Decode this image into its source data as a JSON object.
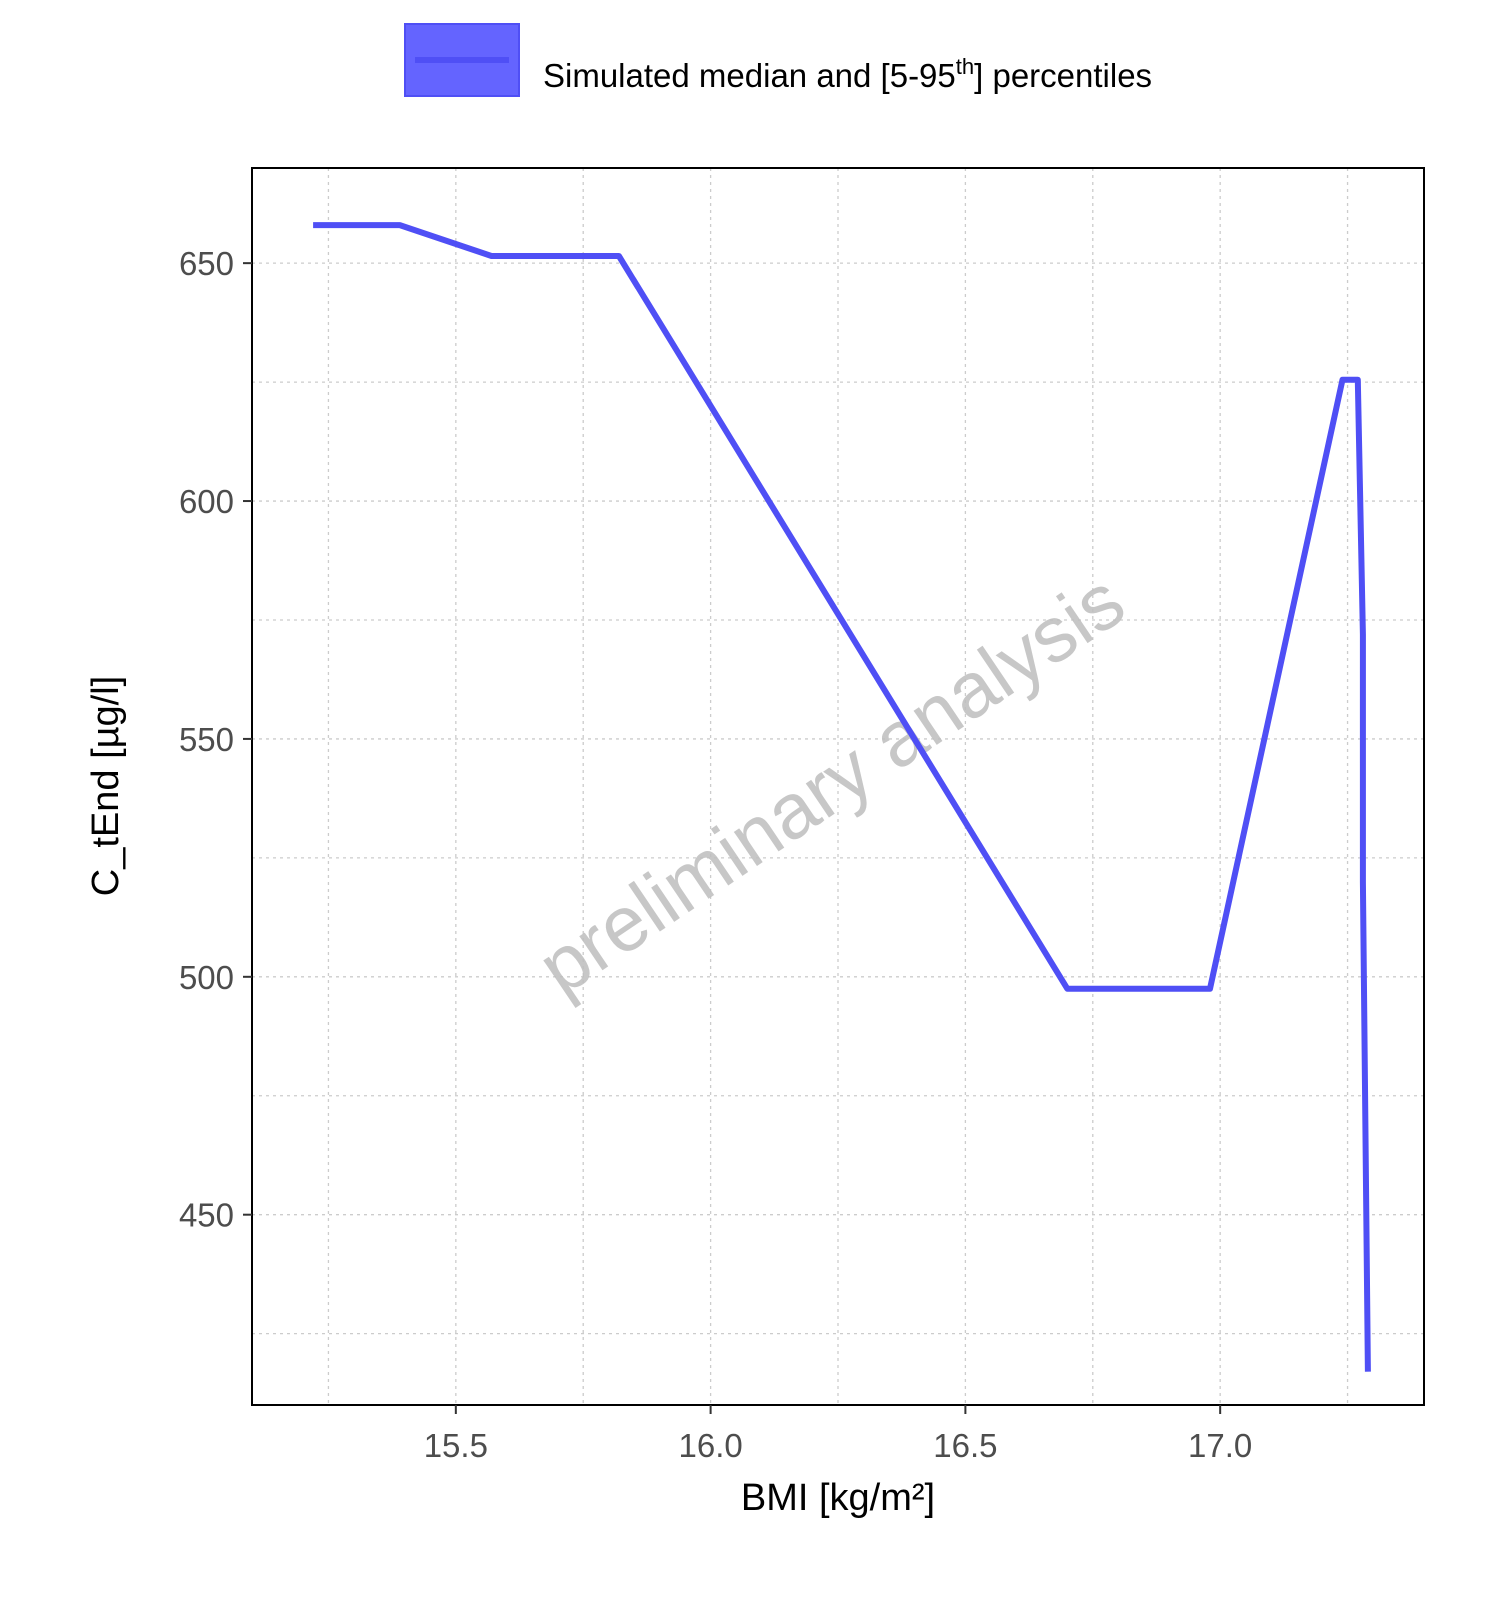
{
  "chart_data": {
    "type": "line",
    "title": "",
    "xlabel": "BMI [kg/m²]",
    "ylabel": "C_tEnd [µg/l]",
    "xlim": [
      15.1,
      17.4
    ],
    "ylim": [
      410,
      670
    ],
    "x_ticks": [
      15.5,
      16.0,
      16.5,
      17.0
    ],
    "x_tick_labels": [
      "15.5",
      "16.0",
      "16.5",
      "17.0"
    ],
    "y_ticks": [
      450,
      500,
      550,
      600,
      650
    ],
    "y_tick_labels": [
      "450",
      "500",
      "550",
      "600",
      "650"
    ],
    "x_minor_ticks": [
      15.25,
      15.75,
      16.25,
      16.75,
      17.25
    ],
    "y_minor_ticks": [
      425,
      475,
      525,
      575,
      625
    ],
    "grid": true,
    "legend": {
      "position": "top",
      "label_main": "Simulated median and [5-95",
      "label_sup": "th",
      "label_end": "] percentiles"
    },
    "watermark": "preliminary analysis",
    "series": [
      {
        "color": "#4f4ff5",
        "x": [
          15.22,
          15.39,
          15.57,
          15.82,
          16.7,
          16.98,
          17.24,
          17.27,
          17.28,
          17.28,
          17.29
        ],
        "y": [
          658,
          658,
          651.5,
          651.5,
          497.5,
          497.5,
          625.5,
          625.5,
          572,
          520,
          417
        ]
      }
    ]
  }
}
